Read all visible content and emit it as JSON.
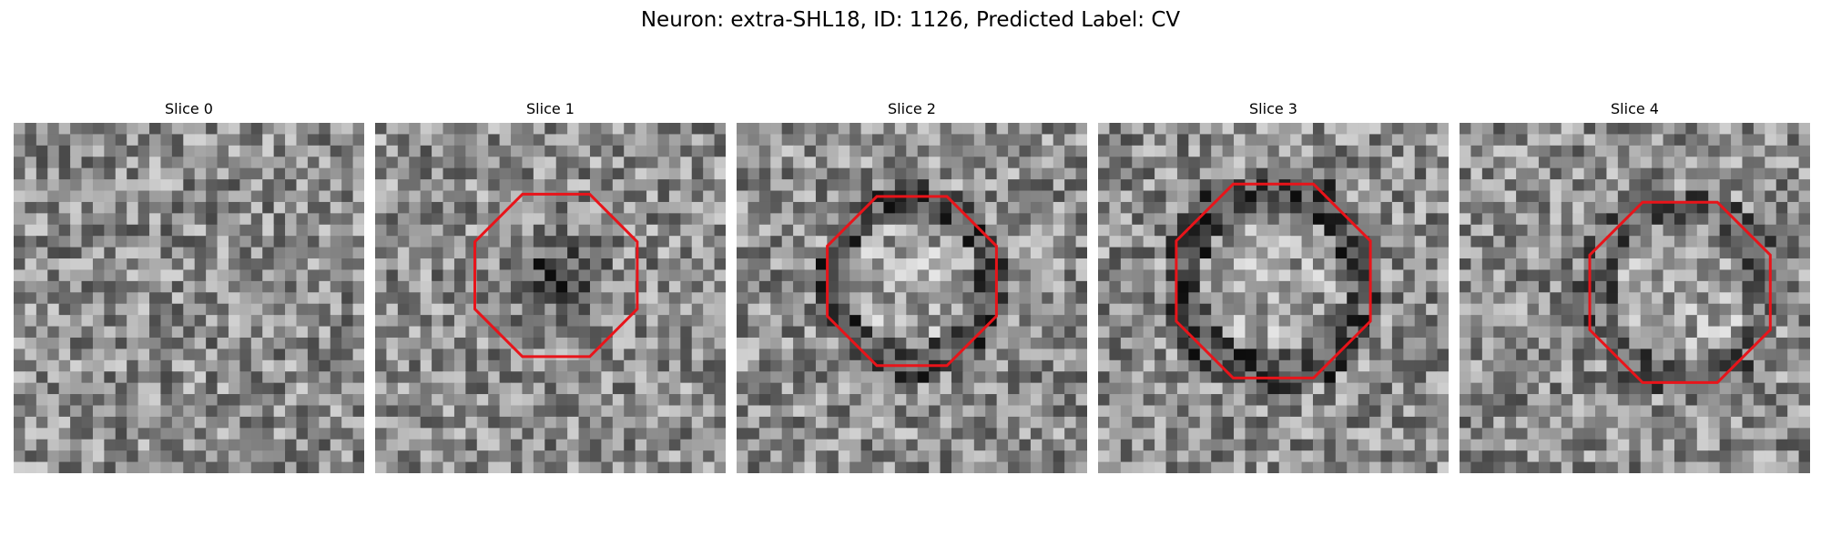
{
  "figure_title": "Neuron: extra-SHL18, ID: 1126, Predicted Label: CV",
  "slices": [
    {
      "title": "Slice 0",
      "contour": false,
      "blob": "none"
    },
    {
      "title": "Slice 1",
      "contour": true,
      "blob": "dark-center"
    },
    {
      "title": "Slice 2",
      "contour": true,
      "blob": "dark-ring"
    },
    {
      "title": "Slice 3",
      "contour": true,
      "blob": "dark-ring"
    },
    {
      "title": "Slice 4",
      "contour": true,
      "blob": "dark-ring-faint"
    }
  ],
  "contour_color": "#e8141a"
}
